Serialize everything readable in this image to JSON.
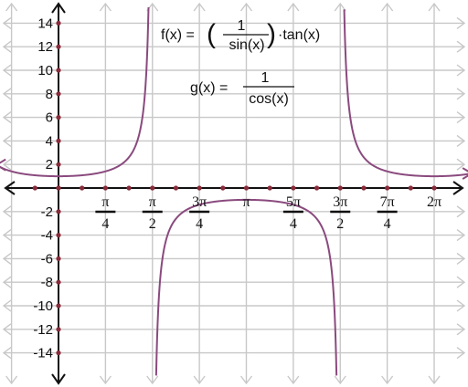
{
  "chart_data": {
    "type": "line",
    "title": "",
    "xlabel": "",
    "ylabel": "",
    "xlim_units_of_pi": [
      -0.33,
      2.2
    ],
    "ylim": [
      -16,
      15.8
    ],
    "grid": true,
    "x_ticks_units_of_pi": [
      0.25,
      0.5,
      0.75,
      1,
      1.25,
      1.5,
      1.75,
      2
    ],
    "x_tick_labels": [
      {
        "kind": "fraction",
        "num": "π",
        "den": "4"
      },
      {
        "kind": "fraction",
        "num": "π",
        "den": "2"
      },
      {
        "kind": "fraction",
        "num": "3π",
        "den": "4"
      },
      {
        "kind": "plain",
        "text": "π"
      },
      {
        "kind": "fraction",
        "num": "5π",
        "den": "4"
      },
      {
        "kind": "fraction",
        "num": "3π",
        "den": "2"
      },
      {
        "kind": "fraction",
        "num": "7π",
        "den": "4"
      },
      {
        "kind": "plain",
        "text": "2π"
      }
    ],
    "y_ticks": [
      14,
      12,
      10,
      8,
      6,
      4,
      2,
      -2,
      -4,
      -6,
      -8,
      -10,
      -12,
      -14
    ],
    "y_tick_labels": [
      "14",
      "12",
      "10",
      "8",
      "6",
      "4",
      "2",
      "-2",
      "-4",
      "-6",
      "-8",
      "-10",
      "-12",
      "-14"
    ],
    "series": [
      {
        "function": "1/cos(x)",
        "color": "#8a4a7e",
        "domain_units_of_pi": [
          -0.33,
          2.2
        ],
        "vertical_asymptotes_units_of_pi": [
          0.5,
          1.5
        ],
        "sample_points": [
          [
            0,
            1
          ],
          [
            0.25,
            1.414
          ],
          [
            1,
            -1
          ],
          [
            1.75,
            1.414
          ],
          [
            2,
            1
          ]
        ]
      }
    ],
    "annotations": {
      "f_label": "f(x) = ",
      "f_numerator": "1",
      "f_denominator": "sin(x)",
      "f_suffix": "·tan(x)",
      "g_label": "g(x) = ",
      "g_numerator": "1",
      "g_denominator": "cos(x)"
    },
    "colors": {
      "curve": "#8a4a7e",
      "axis": "#111111",
      "grid": "#c8c8c8",
      "tick_dot": "#8a2a3a"
    }
  }
}
